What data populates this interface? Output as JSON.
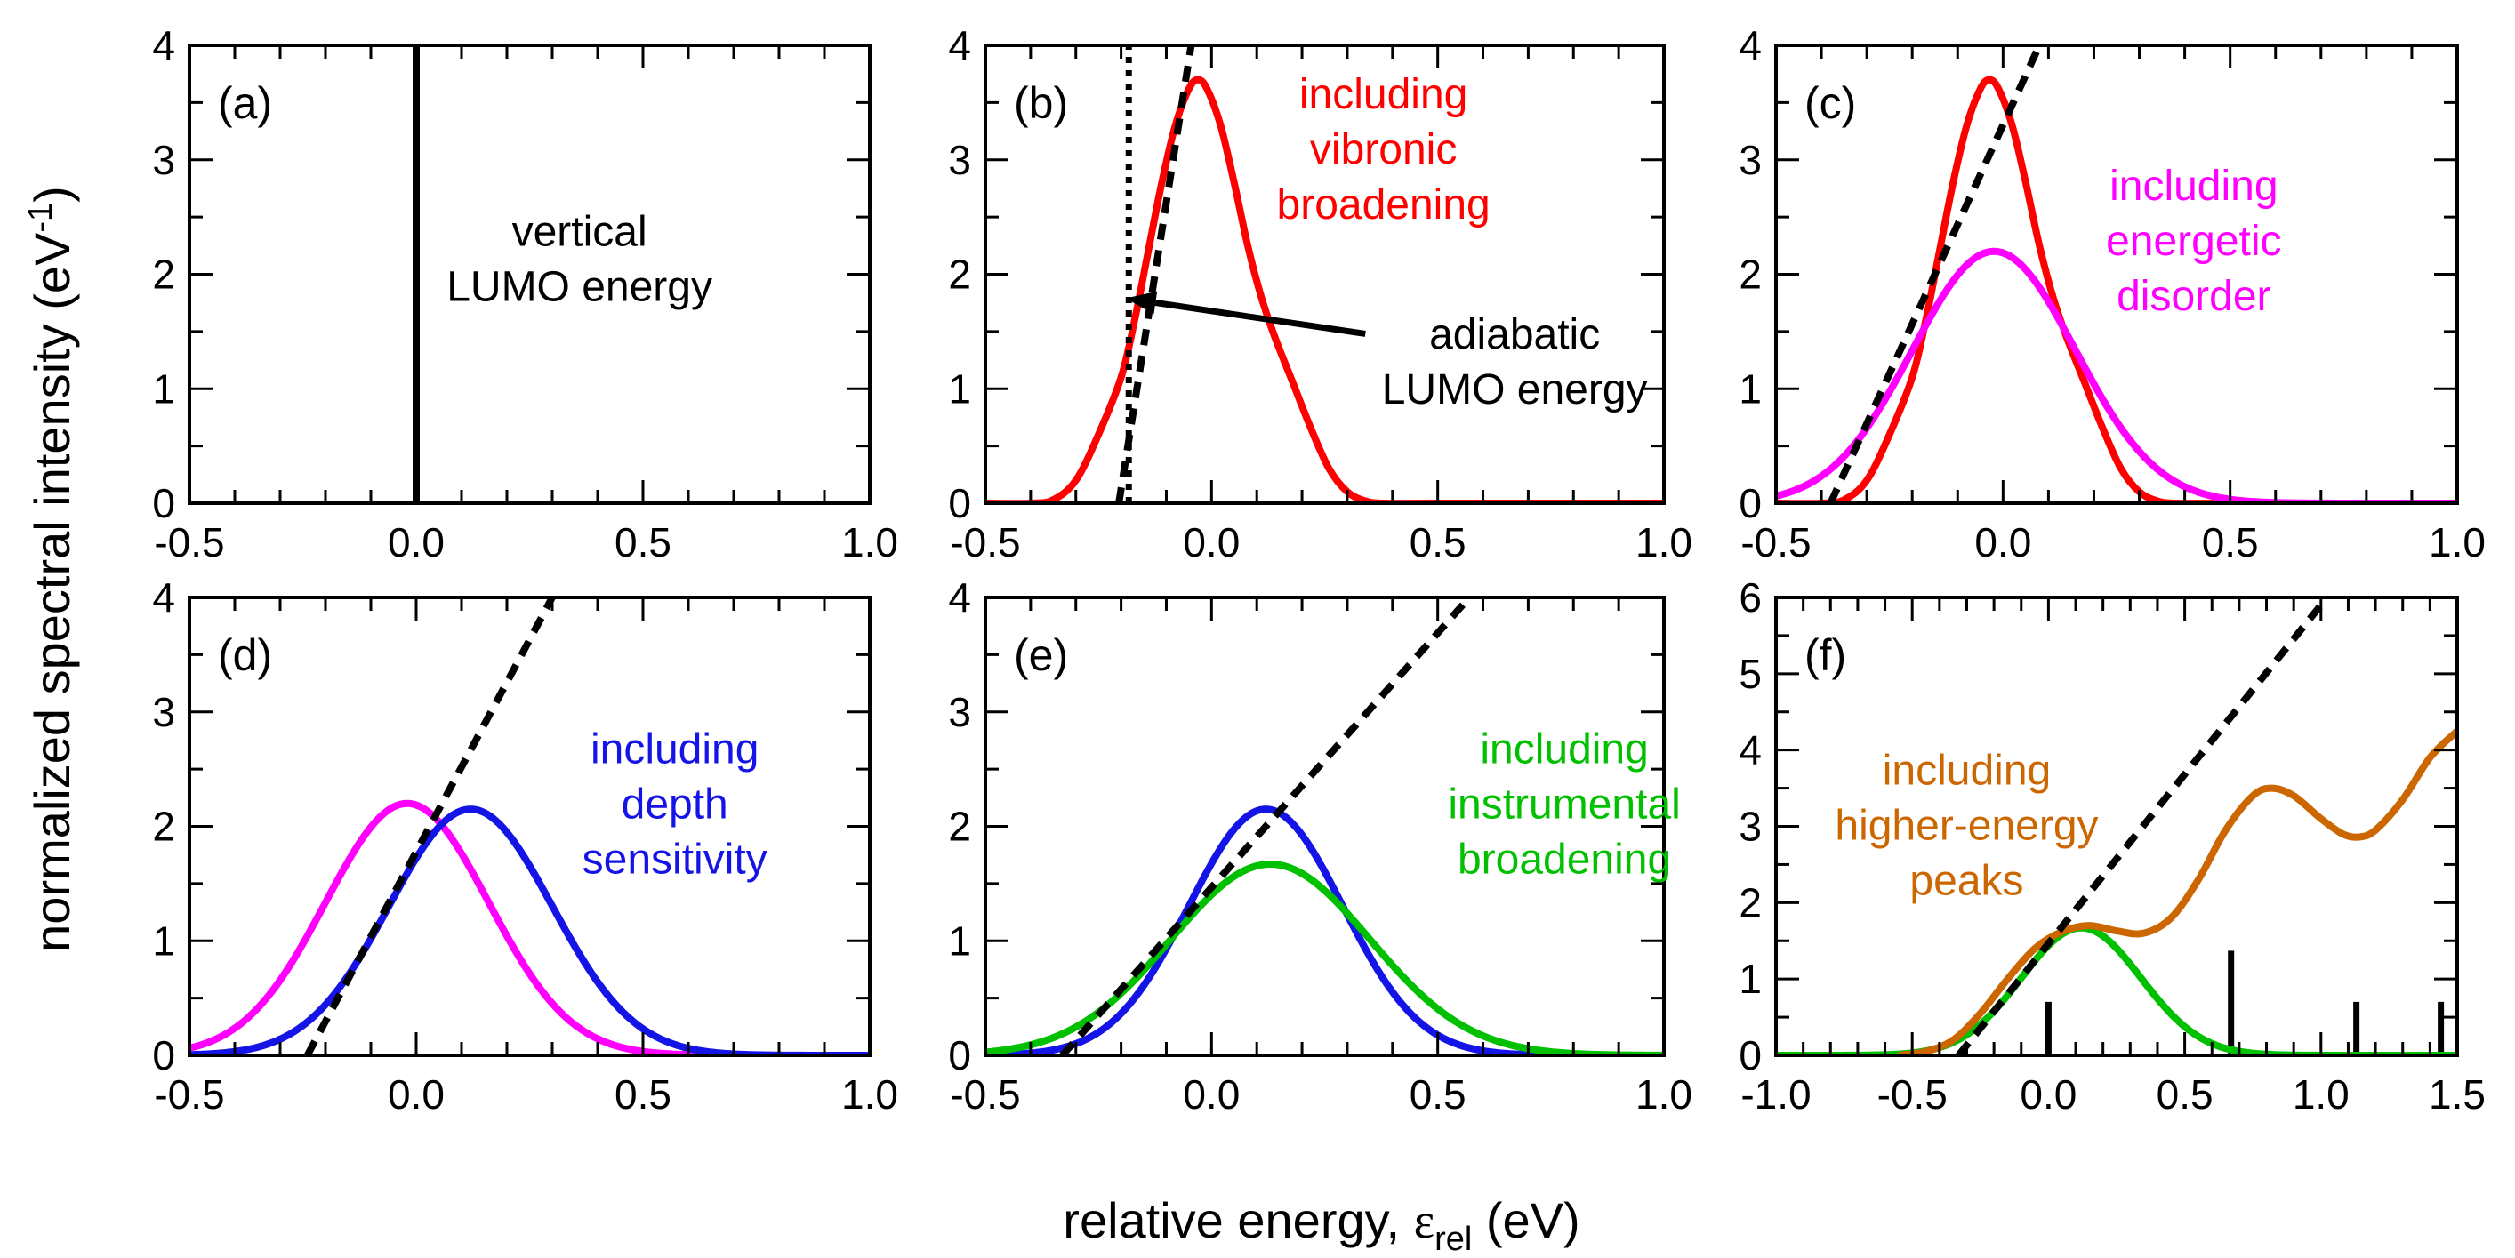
{
  "figure": {
    "ylabel": "normalized spectral intensity (eV",
    "ylabel_sup": "-1",
    "ylabel_end": ")",
    "xlabel_main": "relative energy, ",
    "xlabel_symbol": "ε",
    "xlabel_sub": "rel",
    "xlabel_end": " (eV)"
  },
  "colors": {
    "vibronic": "#ff0000",
    "disorder": "#ff00ff",
    "depth": "#1414e6",
    "instrumental": "#00c000",
    "higher": "#cc6600",
    "black": "#000000"
  },
  "chart_data": [
    {
      "id": "a",
      "type": "line",
      "panel_label": "(a)",
      "xlim": [
        -0.5,
        1.0
      ],
      "ylim": [
        0,
        4
      ],
      "xticks": [
        -0.5,
        0.0,
        0.5,
        1.0
      ],
      "xtick_labels": [
        "-0.5",
        "0.0",
        "0.5",
        "1.0"
      ],
      "yticks": [
        0,
        1,
        2,
        3,
        4
      ],
      "ytick_labels": [
        "0",
        "1",
        "2",
        "3",
        "4"
      ],
      "xminor": 0.1,
      "yminor": 0.5,
      "series": [
        {
          "name": "vertical LUMO energy",
          "color_key": "black",
          "style": "solid",
          "width": "thick",
          "points": [
            [
              0.0,
              0
            ],
            [
              0.0,
              4
            ]
          ]
        }
      ],
      "annotations": [
        {
          "lines": [
            "vertical",
            "LUMO energy"
          ],
          "color_key": "black",
          "x": 0.36,
          "y": 2.25,
          "anchor": "middle"
        }
      ]
    },
    {
      "id": "b",
      "type": "line",
      "panel_label": "(b)",
      "xlim": [
        -0.5,
        1.0
      ],
      "ylim": [
        0,
        4
      ],
      "xticks": [
        -0.5,
        0.0,
        0.5,
        1.0
      ],
      "xtick_labels": [
        "-0.5",
        "0.0",
        "0.5",
        "1.0"
      ],
      "yticks": [
        0,
        1,
        2,
        3,
        4
      ],
      "ytick_labels": [
        "0",
        "1",
        "2",
        "3",
        "4"
      ],
      "xminor": 0.1,
      "yminor": 0.5,
      "series": [
        {
          "name": "including vibronic broadening",
          "color_key": "vibronic",
          "style": "solid",
          "points": [
            [
              -0.5,
              0
            ],
            [
              -0.4,
              0.0
            ],
            [
              -0.35,
              0.03
            ],
            [
              -0.3,
              0.2
            ],
            [
              -0.25,
              0.6
            ],
            [
              -0.2,
              1.1
            ],
            [
              -0.17,
              1.6
            ],
            [
              -0.14,
              2.2
            ],
            [
              -0.11,
              2.8
            ],
            [
              -0.08,
              3.3
            ],
            [
              -0.05,
              3.62
            ],
            [
              -0.03,
              3.7
            ],
            [
              -0.01,
              3.62
            ],
            [
              0.02,
              3.3
            ],
            [
              0.05,
              2.8
            ],
            [
              0.08,
              2.25
            ],
            [
              0.11,
              1.8
            ],
            [
              0.14,
              1.45
            ],
            [
              0.18,
              1.05
            ],
            [
              0.22,
              0.65
            ],
            [
              0.26,
              0.3
            ],
            [
              0.3,
              0.1
            ],
            [
              0.34,
              0.02
            ],
            [
              0.38,
              0.0
            ],
            [
              0.5,
              0
            ],
            [
              1.0,
              0
            ]
          ]
        },
        {
          "name": "adiabatic LUMO energy",
          "color_key": "black",
          "style": "dotted",
          "points": [
            [
              -0.183,
              0
            ],
            [
              -0.183,
              4
            ]
          ]
        },
        {
          "name": "onset tangent",
          "color_key": "black",
          "style": "dashed",
          "points": [
            [
              -0.205,
              0
            ],
            [
              -0.045,
              4
            ]
          ]
        }
      ],
      "annotations": [
        {
          "lines": [
            "including",
            "vibronic",
            "broadening"
          ],
          "color_key": "vibronic",
          "x": 0.38,
          "y": 3.45,
          "anchor": "middle"
        },
        {
          "lines": [
            "adiabatic",
            "LUMO energy"
          ],
          "color_key": "black",
          "x": 0.67,
          "y": 1.35,
          "anchor": "middle"
        }
      ],
      "arrows": [
        {
          "from": [
            0.34,
            1.48
          ],
          "to": [
            -0.19,
            1.79
          ],
          "color_key": "black"
        }
      ]
    },
    {
      "id": "c",
      "type": "line",
      "panel_label": "(c)",
      "xlim": [
        -0.5,
        1.0
      ],
      "ylim": [
        0,
        4
      ],
      "xticks": [
        -0.5,
        0.0,
        0.5,
        1.0
      ],
      "xtick_labels": [
        "-0.5",
        "0.0",
        "0.5",
        "1.0"
      ],
      "yticks": [
        0,
        1,
        2,
        3,
        4
      ],
      "ytick_labels": [
        "0",
        "1",
        "2",
        "3",
        "4"
      ],
      "xminor": 0.1,
      "yminor": 0.5,
      "series": [
        {
          "name": "including vibronic broadening",
          "color_key": "vibronic",
          "style": "solid",
          "points": [
            [
              -0.5,
              0
            ],
            [
              -0.4,
              0.0
            ],
            [
              -0.35,
              0.03
            ],
            [
              -0.3,
              0.2
            ],
            [
              -0.25,
              0.6
            ],
            [
              -0.2,
              1.1
            ],
            [
              -0.17,
              1.6
            ],
            [
              -0.14,
              2.2
            ],
            [
              -0.11,
              2.8
            ],
            [
              -0.08,
              3.3
            ],
            [
              -0.05,
              3.62
            ],
            [
              -0.03,
              3.7
            ],
            [
              -0.01,
              3.62
            ],
            [
              0.02,
              3.3
            ],
            [
              0.05,
              2.8
            ],
            [
              0.08,
              2.25
            ],
            [
              0.11,
              1.8
            ],
            [
              0.14,
              1.45
            ],
            [
              0.18,
              1.05
            ],
            [
              0.22,
              0.65
            ],
            [
              0.26,
              0.3
            ],
            [
              0.3,
              0.1
            ],
            [
              0.34,
              0.02
            ],
            [
              0.38,
              0.0
            ],
            [
              0.5,
              0
            ],
            [
              1.0,
              0
            ]
          ]
        },
        {
          "name": "including energetic disorder",
          "color_key": "disorder",
          "style": "solid",
          "gaussian": {
            "center": -0.02,
            "amp": 2.2,
            "sigma": 0.18
          }
        },
        {
          "name": "onset tangent",
          "color_key": "black",
          "style": "dashed",
          "points": [
            [
              -0.38,
              0
            ],
            [
              0.08,
              4
            ]
          ]
        }
      ],
      "annotations": [
        {
          "lines": [
            "including",
            "energetic",
            "disorder"
          ],
          "color_key": "disorder",
          "x": 0.42,
          "y": 2.65,
          "anchor": "middle"
        }
      ]
    },
    {
      "id": "d",
      "type": "line",
      "panel_label": "(d)",
      "xlim": [
        -0.5,
        1.0
      ],
      "ylim": [
        0,
        4
      ],
      "xticks": [
        -0.5,
        0.0,
        0.5,
        1.0
      ],
      "xtick_labels": [
        "-0.5",
        "0.0",
        "0.5",
        "1.0"
      ],
      "yticks": [
        0,
        1,
        2,
        3,
        4
      ],
      "ytick_labels": [
        "0",
        "1",
        "2",
        "3",
        "4"
      ],
      "xminor": 0.1,
      "yminor": 0.5,
      "series": [
        {
          "name": "including energetic disorder",
          "color_key": "disorder",
          "style": "solid",
          "gaussian": {
            "center": -0.02,
            "amp": 2.2,
            "sigma": 0.18
          }
        },
        {
          "name": "including depth sensitivity",
          "color_key": "depth",
          "style": "solid",
          "gaussian": {
            "center": 0.12,
            "amp": 2.15,
            "sigma": 0.18
          }
        },
        {
          "name": "onset tangent",
          "color_key": "black",
          "style": "dashed",
          "points": [
            [
              -0.24,
              0
            ],
            [
              0.3,
              4
            ]
          ]
        }
      ],
      "annotations": [
        {
          "lines": [
            "including",
            "depth",
            "sensitivity"
          ],
          "color_key": "depth",
          "x": 0.57,
          "y": 2.55,
          "anchor": "middle"
        }
      ]
    },
    {
      "id": "e",
      "type": "line",
      "panel_label": "(e)",
      "xlim": [
        -0.5,
        1.0
      ],
      "ylim": [
        0,
        4
      ],
      "xticks": [
        -0.5,
        0.0,
        0.5,
        1.0
      ],
      "xtick_labels": [
        "-0.5",
        "0.0",
        "0.5",
        "1.0"
      ],
      "yticks": [
        0,
        1,
        2,
        3,
        4
      ],
      "ytick_labels": [
        "0",
        "1",
        "2",
        "3",
        "4"
      ],
      "xminor": 0.1,
      "yminor": 0.5,
      "series": [
        {
          "name": "including depth sensitivity",
          "color_key": "depth",
          "style": "solid",
          "gaussian": {
            "center": 0.12,
            "amp": 2.15,
            "sigma": 0.17
          }
        },
        {
          "name": "including instrumental broadening",
          "color_key": "instrumental",
          "style": "solid",
          "gaussian": {
            "center": 0.13,
            "amp": 1.67,
            "sigma": 0.22
          }
        },
        {
          "name": "onset tangent",
          "color_key": "black",
          "style": "dashed",
          "points": [
            [
              -0.33,
              0
            ],
            [
              0.57,
              4
            ]
          ]
        }
      ],
      "annotations": [
        {
          "lines": [
            "including",
            "instrumental",
            "broadening"
          ],
          "color_key": "instrumental",
          "x": 0.78,
          "y": 2.55,
          "anchor": "middle"
        }
      ]
    },
    {
      "id": "f",
      "type": "line",
      "panel_label": "(f)",
      "xlim": [
        -1.0,
        1.5
      ],
      "ylim": [
        0,
        6
      ],
      "xticks": [
        -1.0,
        -0.5,
        0.0,
        0.5,
        1.0,
        1.5
      ],
      "xtick_labels": [
        "-1.0",
        "-0.5",
        "0.0",
        "0.5",
        "1.0",
        "1.5"
      ],
      "yticks": [
        0,
        1,
        2,
        3,
        4,
        5,
        6
      ],
      "ytick_labels": [
        "0",
        "1",
        "2",
        "3",
        "4",
        "5",
        "6"
      ],
      "xminor": 0.1,
      "yminor": 0.5,
      "series": [
        {
          "name": "including instrumental broadening",
          "color_key": "instrumental",
          "style": "solid",
          "gaussian": {
            "center": 0.12,
            "amp": 1.67,
            "sigma": 0.22
          }
        },
        {
          "name": "including higher-energy peaks",
          "color_key": "higher",
          "style": "solid",
          "points": [
            [
              -0.55,
              0.0
            ],
            [
              -0.45,
              0.05
            ],
            [
              -0.35,
              0.2
            ],
            [
              -0.25,
              0.55
            ],
            [
              -0.15,
              1.0
            ],
            [
              -0.05,
              1.4
            ],
            [
              0.05,
              1.62
            ],
            [
              0.15,
              1.7
            ],
            [
              0.25,
              1.63
            ],
            [
              0.35,
              1.6
            ],
            [
              0.45,
              1.8
            ],
            [
              0.55,
              2.3
            ],
            [
              0.65,
              2.95
            ],
            [
              0.75,
              3.4
            ],
            [
              0.82,
              3.5
            ],
            [
              0.9,
              3.4
            ],
            [
              1.0,
              3.1
            ],
            [
              1.08,
              2.9
            ],
            [
              1.14,
              2.86
            ],
            [
              1.2,
              2.95
            ],
            [
              1.3,
              3.35
            ],
            [
              1.4,
              3.9
            ],
            [
              1.5,
              4.25
            ]
          ]
        },
        {
          "name": "onset tangent",
          "color_key": "black",
          "style": "dashed",
          "points": [
            [
              -0.33,
              0
            ],
            [
              1.0,
              5.9
            ]
          ]
        }
      ],
      "sticks": [
        {
          "x": 0.0,
          "y": 0.7
        },
        {
          "x": 0.67,
          "y": 1.37
        },
        {
          "x": 1.13,
          "y": 0.7
        },
        {
          "x": 1.44,
          "y": 0.7
        }
      ],
      "annotations": [
        {
          "lines": [
            "including",
            "higher-energy",
            "peaks"
          ],
          "color_key": "higher",
          "x": -0.3,
          "y": 3.55,
          "anchor": "middle"
        }
      ]
    }
  ]
}
